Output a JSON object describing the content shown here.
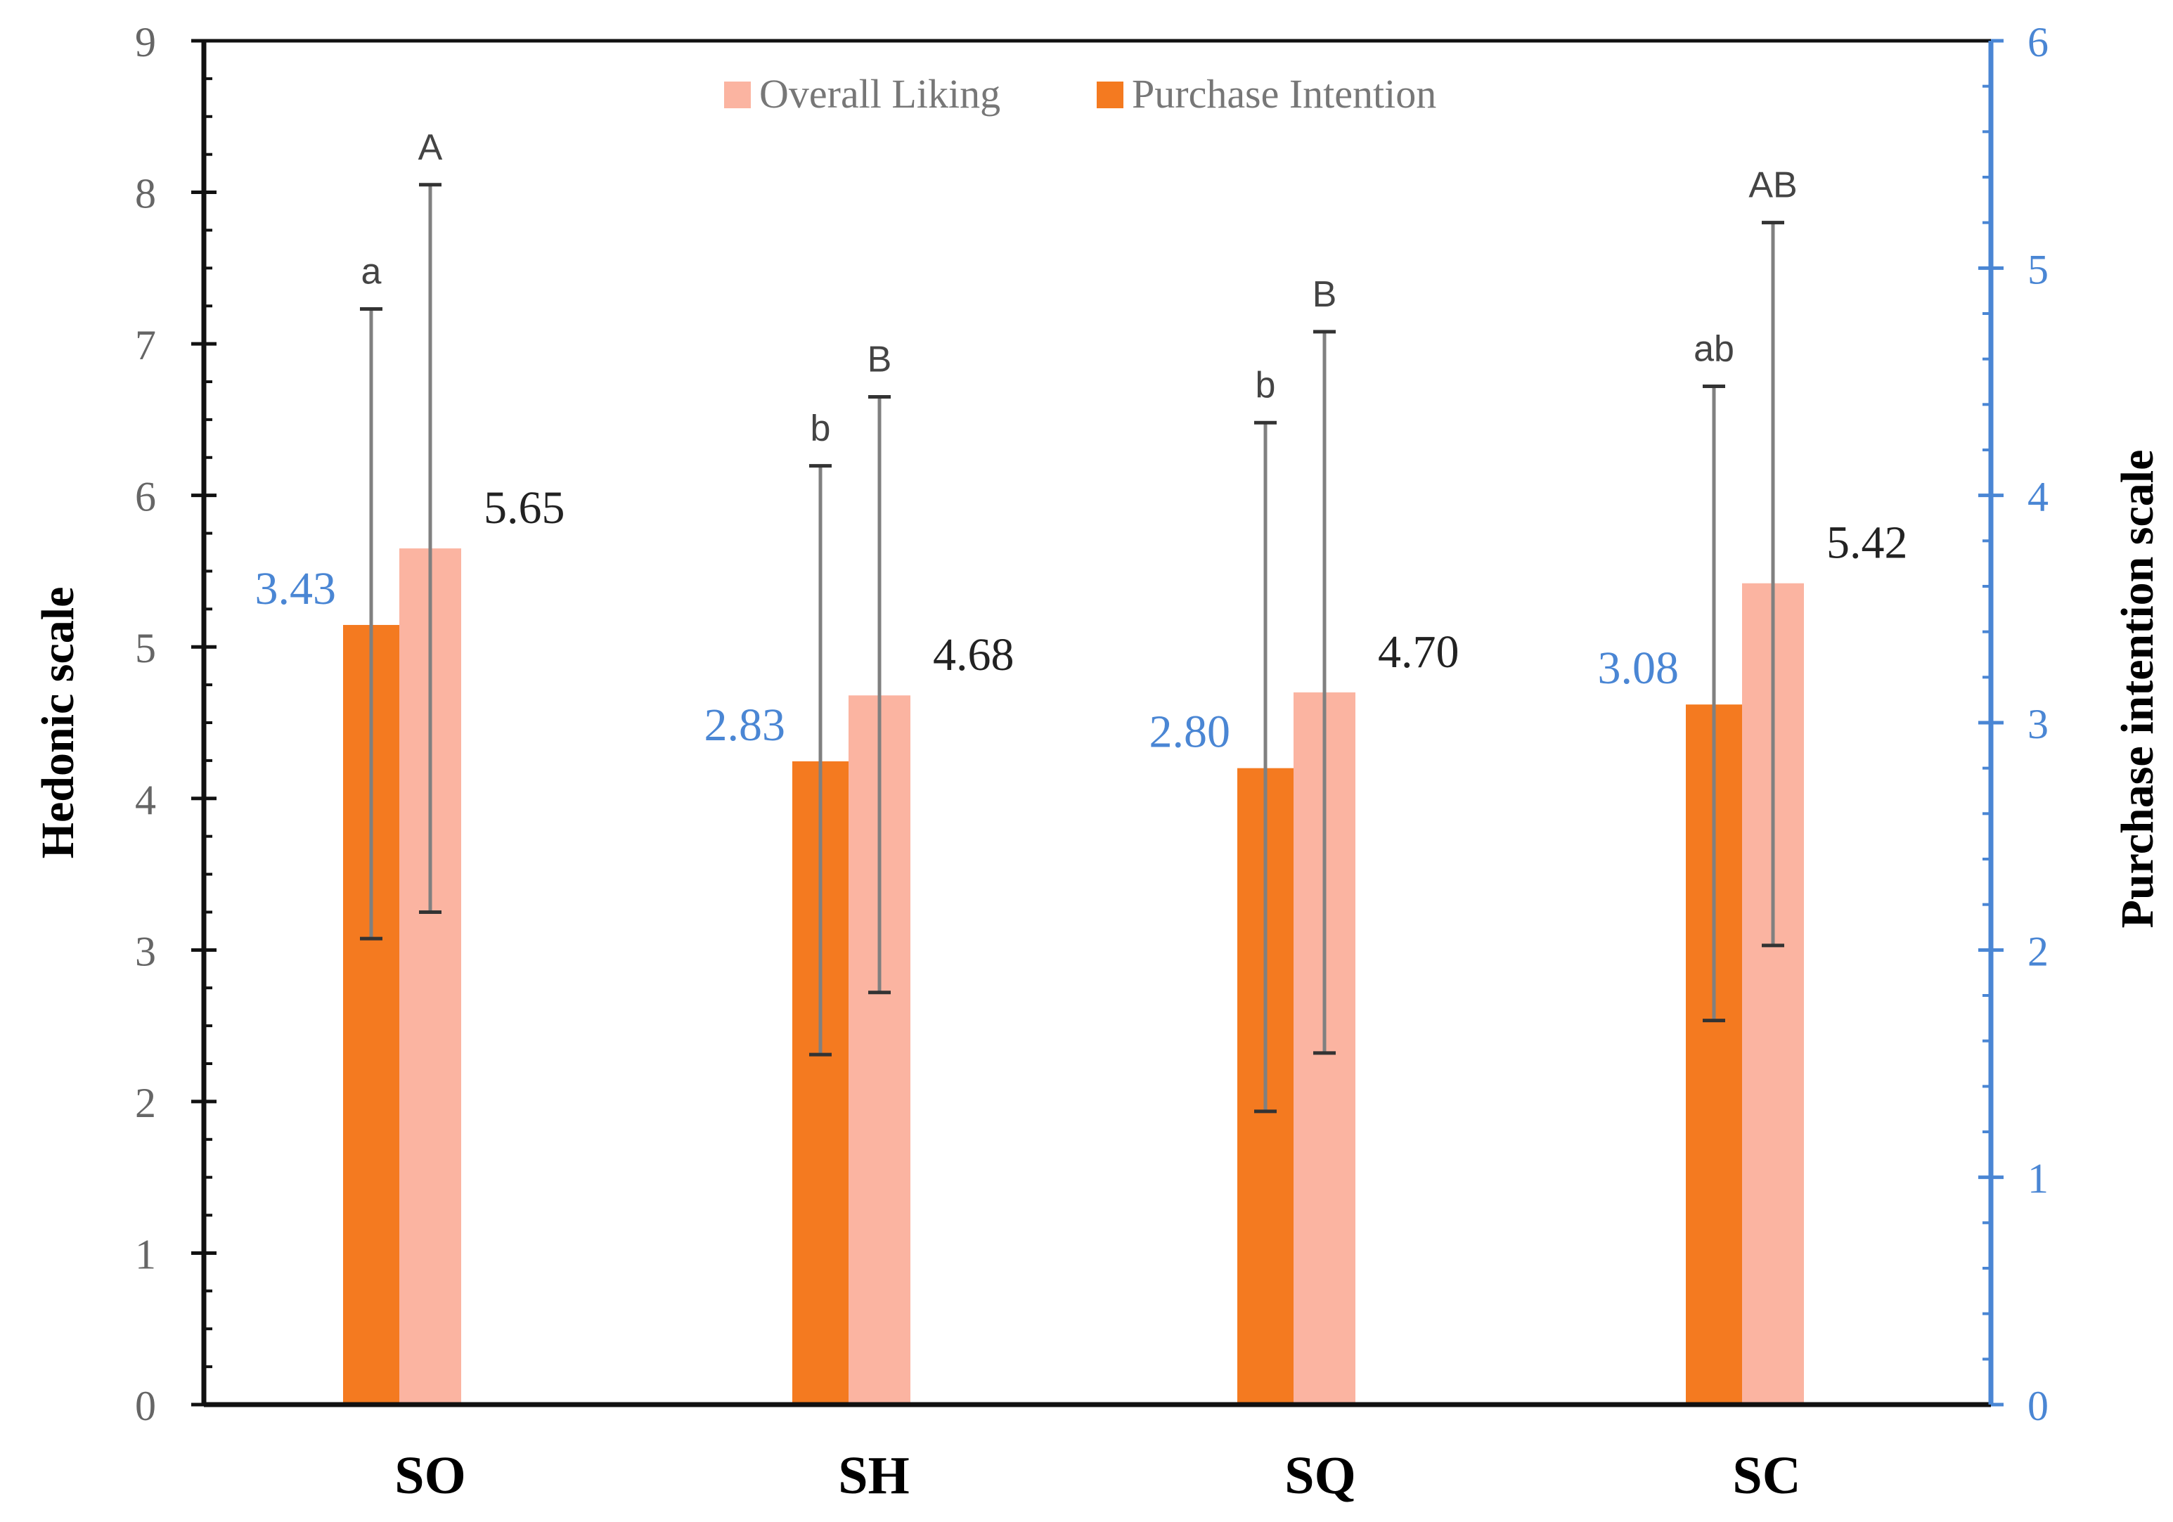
{
  "chart_data": {
    "type": "bar",
    "title": "",
    "categories": [
      "SO",
      "SH",
      "SQ",
      "SC"
    ],
    "left_axis": {
      "label": "Hedonic scale",
      "range": [
        0,
        9
      ],
      "ticks": [
        "0",
        "1",
        "2",
        "3",
        "4",
        "5",
        "6",
        "7",
        "8",
        "9"
      ],
      "color": "#666666"
    },
    "right_axis": {
      "label": "Purchase intention scale",
      "range": [
        0,
        6
      ],
      "ticks": [
        "0",
        "1",
        "2",
        "3",
        "4",
        "5",
        "6"
      ],
      "color": "#4a86d4"
    },
    "legend": {
      "placement": "top-center",
      "entries": [
        "Overall Liking",
        "Purchase Intention"
      ]
    },
    "series": [
      {
        "name": "Purchase Intention",
        "axis": "right",
        "color": "#f47a20",
        "values": [
          3.43,
          2.83,
          2.8,
          3.08
        ],
        "value_labels": [
          "3.43",
          "2.83",
          "2.80",
          "3.08"
        ],
        "error_low": [
          2.05,
          1.54,
          1.29,
          1.69
        ],
        "error_high": [
          4.82,
          4.13,
          4.32,
          4.48
        ],
        "significance": [
          "a",
          "b",
          "b",
          "ab"
        ]
      },
      {
        "name": "Overall Liking",
        "axis": "left",
        "color": "#fbb4a1",
        "values": [
          5.65,
          4.68,
          4.7,
          5.42
        ],
        "value_labels": [
          "5.65",
          "4.68",
          "4.70",
          "5.42"
        ],
        "error_low": [
          3.25,
          2.72,
          2.32,
          3.03
        ],
        "error_high": [
          8.05,
          6.65,
          7.08,
          7.8
        ],
        "significance": [
          "A",
          "B",
          "B",
          "AB"
        ]
      }
    ],
    "grid": false
  }
}
